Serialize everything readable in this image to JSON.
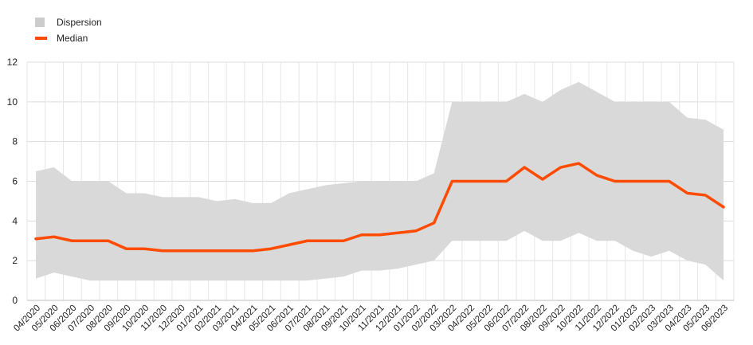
{
  "chart_data": {
    "type": "area",
    "title": "",
    "xlabel": "",
    "ylabel": "",
    "ylim": [
      0,
      12
    ],
    "yticks": [
      0,
      2,
      4,
      6,
      8,
      10,
      12
    ],
    "grid": true,
    "legend_position": "top-left",
    "categories": [
      "04/2020",
      "05/2020",
      "06/2020",
      "07/2020",
      "08/2020",
      "09/2020",
      "10/2020",
      "11/2020",
      "12/2020",
      "01/2021",
      "02/2021",
      "03/2021",
      "04/2021",
      "05/2021",
      "06/2021",
      "07/2021",
      "08/2021",
      "09/2021",
      "10/2021",
      "11/2021",
      "12/2021",
      "01/2022",
      "02/2022",
      "03/2022",
      "04/2022",
      "05/2022",
      "06/2022",
      "07/2022",
      "08/2022",
      "09/2022",
      "10/2022",
      "11/2022",
      "12/2022",
      "01/2023",
      "02/2023",
      "03/2023",
      "04/2023",
      "05/2023",
      "06/2023"
    ],
    "series": [
      {
        "name": "Dispersion",
        "kind": "band",
        "color": "#d9d9d9",
        "upper": [
          6.5,
          6.7,
          6.0,
          6.0,
          6.0,
          5.4,
          5.4,
          5.2,
          5.2,
          5.2,
          5.0,
          5.1,
          4.9,
          4.9,
          5.4,
          5.6,
          5.8,
          5.9,
          6.0,
          6.0,
          6.0,
          6.0,
          6.4,
          10.0,
          10.0,
          10.0,
          10.0,
          10.4,
          10.0,
          10.6,
          11.0,
          10.5,
          10.0,
          10.0,
          10.0,
          10.0,
          9.2,
          9.1,
          8.6
        ],
        "lower": [
          1.1,
          1.4,
          1.2,
          1.0,
          1.0,
          1.0,
          1.0,
          1.0,
          1.0,
          1.0,
          1.0,
          1.0,
          1.0,
          1.0,
          1.0,
          1.0,
          1.1,
          1.2,
          1.5,
          1.5,
          1.6,
          1.8,
          2.0,
          3.0,
          3.0,
          3.0,
          3.0,
          3.5,
          3.0,
          3.0,
          3.4,
          3.0,
          3.0,
          2.5,
          2.2,
          2.5,
          2.0,
          1.8,
          1.0
        ]
      },
      {
        "name": "Median",
        "kind": "line",
        "color": "#ff4b00",
        "values": [
          3.1,
          3.2,
          3.0,
          3.0,
          3.0,
          2.6,
          2.6,
          2.5,
          2.5,
          2.5,
          2.5,
          2.5,
          2.5,
          2.6,
          2.8,
          3.0,
          3.0,
          3.0,
          3.3,
          3.3,
          3.4,
          3.5,
          3.9,
          6.0,
          6.0,
          6.0,
          6.0,
          6.7,
          6.1,
          6.7,
          6.9,
          6.3,
          6.0,
          6.0,
          6.0,
          6.0,
          5.4,
          5.3,
          4.7
        ]
      }
    ]
  }
}
